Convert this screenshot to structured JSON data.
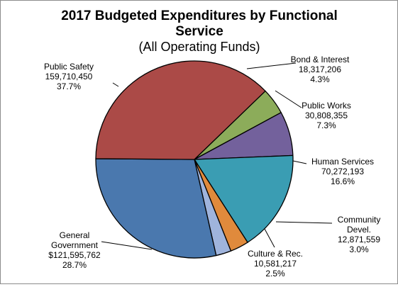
{
  "chart_data": {
    "type": "pie",
    "title": [
      "2017 Budgeted Expenditures by Functional",
      "Service"
    ],
    "subtitle": "(All Operating Funds)",
    "slices": [
      {
        "key": "bond",
        "name_lines": [
          "Bond & Interest"
        ],
        "value": 18317206,
        "value_text": "18,317,206",
        "percent_text": "4.3%",
        "color": "#8cac5a"
      },
      {
        "key": "public_works",
        "name_lines": [
          "Public Works"
        ],
        "value": 30808355,
        "value_text": "30,808,355",
        "percent_text": "7.3%",
        "color": "#73619c"
      },
      {
        "key": "human_services",
        "name_lines": [
          "Human Services"
        ],
        "value": 70272193,
        "value_text": "70,272,193",
        "percent_text": "16.6%",
        "color": "#3a9db3"
      },
      {
        "key": "community",
        "name_lines": [
          "Community",
          "Devel."
        ],
        "value": 12871559,
        "value_text": "12,871,559",
        "percent_text": "3.0%",
        "color": "#e08a3c"
      },
      {
        "key": "culture",
        "name_lines": [
          "Culture  & Rec."
        ],
        "value": 10581217,
        "value_text": "10,581,217",
        "percent_text": "2.5%",
        "color": "#9fb4dc"
      },
      {
        "key": "general_gov",
        "name_lines": [
          "General",
          "Government"
        ],
        "value": 121595762,
        "value_text": "$121,595,762",
        "percent_text": "28.7%",
        "color": "#4a78ae"
      },
      {
        "key": "public_safety",
        "name_lines": [
          "Public Safety"
        ],
        "value": 159710450,
        "value_text": "159,710,450",
        "percent_text": "37.7%",
        "color": "#ab4a47"
      }
    ]
  }
}
